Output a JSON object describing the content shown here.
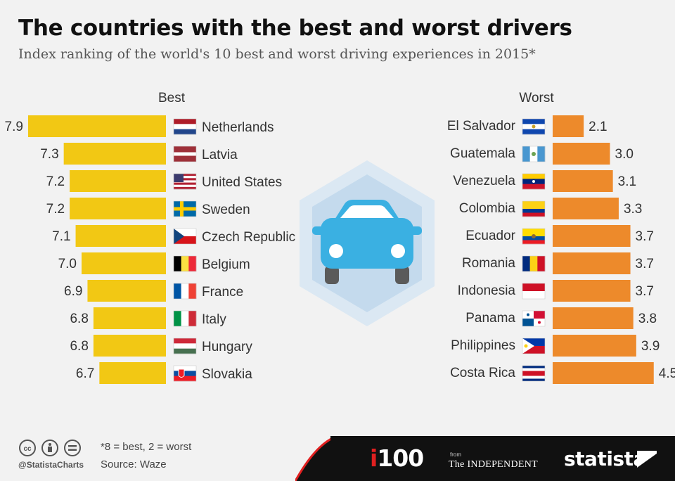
{
  "chart_data": {
    "type": "bar",
    "title": "The countries with the best and worst drivers",
    "subtitle": "Index ranking of the world's 10 best and worst driving experiences in 2015*",
    "best": {
      "label": "Best",
      "color": "#f2c814",
      "categories": [
        "Netherlands",
        "Latvia",
        "United States",
        "Sweden",
        "Czech Republic",
        "Belgium",
        "France",
        "Italy",
        "Hungary",
        "Slovakia"
      ],
      "values": [
        7.9,
        7.3,
        7.2,
        7.2,
        7.1,
        7.0,
        6.9,
        6.8,
        6.8,
        6.7
      ],
      "value_labels": [
        "7.9",
        "7.3",
        "7.2",
        "7.2",
        "7.1",
        "7.0",
        "6.9",
        "6.8",
        "6.8",
        "6.7"
      ],
      "flags": [
        "flag-netherlands",
        "flag-latvia",
        "flag-united-states",
        "flag-sweden",
        "flag-czech-republic",
        "flag-belgium",
        "flag-france",
        "flag-italy",
        "flag-hungary",
        "flag-slovakia"
      ]
    },
    "worst": {
      "label": "Worst",
      "color": "#ed8a2b",
      "categories": [
        "El Salvador",
        "Guatemala",
        "Venezuela",
        "Colombia",
        "Ecuador",
        "Romania",
        "Indonesia",
        "Panama",
        "Philippines",
        "Costa Rica"
      ],
      "values": [
        2.1,
        3.0,
        3.1,
        3.3,
        3.7,
        3.7,
        3.7,
        3.8,
        3.9,
        4.5
      ],
      "value_labels": [
        "2.1",
        "3.0",
        "3.1",
        "3.3",
        "3.7",
        "3.7",
        "3.7",
        "3.8",
        "3.9",
        "4.5"
      ],
      "flags": [
        "flag-el-salvador",
        "flag-guatemala",
        "flag-venezuela",
        "flag-colombia",
        "flag-ecuador",
        "flag-romania",
        "flag-indonesia",
        "flag-panama",
        "flag-philippines",
        "flag-costa-rica"
      ]
    },
    "scale_note": "*8 = best, 2 = worst"
  },
  "footer": {
    "note": "*8 = best, 2 = worst",
    "source": "Source: Waze",
    "handle": "@StatistaCharts",
    "brand_i100": "100",
    "brand_i100_prefix": "i",
    "brand_from": "from",
    "brand_independent": "The INDEPENDENT",
    "brand_statista": "statista"
  },
  "colors": {
    "best_bar": "#f2c814",
    "worst_bar": "#ed8a2b",
    "car": "#3ab0e2",
    "hex_outer": "#dbe8f3",
    "hex_inner": "#c4daed"
  }
}
